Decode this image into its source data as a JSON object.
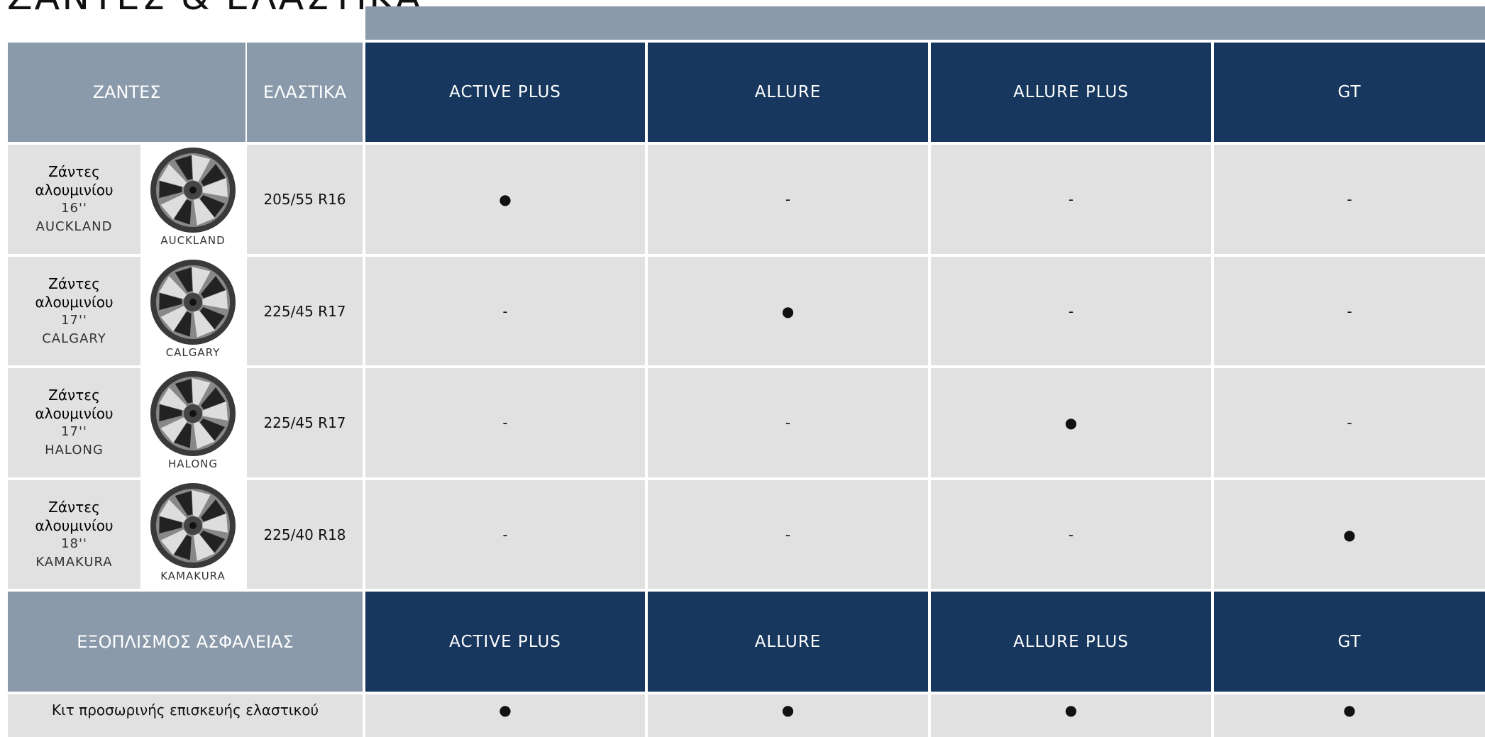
{
  "title": "ΖΑΝΤΕΣ & ΕΛΑΣΤΙΚΑ",
  "wheels_table": {
    "headers": [
      "ΖΑΝΤΕΣ",
      "ΕΛΑΣΤΙΚΑ",
      "ACTIVE PLUS",
      "ALLURE",
      "ALLURE PLUS",
      "GT"
    ],
    "rows": [
      {
        "name": [
          "Ζάντες",
          "αλουμινίου",
          "16''",
          "AUCKLAND"
        ],
        "image_label": "AUCKLAND",
        "tire": "205/55 R16",
        "cells": [
          "●",
          "-",
          "-",
          "-"
        ]
      },
      {
        "name": [
          "Ζάντες",
          "αλουμινίου",
          "17''",
          "CALGARY"
        ],
        "image_label": "CALGARY",
        "tire": "225/45 R17",
        "cells": [
          "-",
          "●",
          "-",
          "-"
        ]
      },
      {
        "name": [
          "Ζάντες",
          "αλουμινίου",
          "17''",
          "HALONG"
        ],
        "image_label": "HALONG",
        "tire": "225/45 R17",
        "cells": [
          "-",
          "-",
          "●",
          "-"
        ]
      },
      {
        "name": [
          "Ζάντες",
          "αλουμινίου",
          "18''",
          "KAMAKURA"
        ],
        "image_label": "KAMAKURA",
        "tire": "225/40 R18",
        "cells": [
          "-",
          "-",
          "-",
          "●"
        ]
      }
    ]
  },
  "safety_table": {
    "headers": [
      "ΕΞΟΠΛΙΣΜΟΣ ΑΣΦΑΛΕΙΑΣ",
      "ACTIVE PLUS",
      "ALLURE",
      "ALLURE PLUS",
      "GT"
    ],
    "rows": [
      {
        "name": "Κιτ προσωρινής επισκευής ελαστικού",
        "cells": [
          "●",
          "●",
          "●",
          "●"
        ]
      }
    ]
  }
}
